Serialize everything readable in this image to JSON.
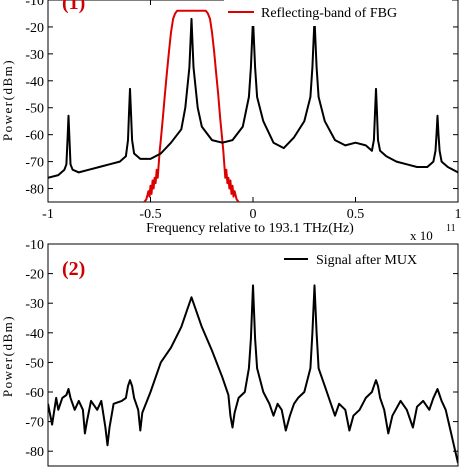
{
  "chart_data": [
    {
      "type": "line",
      "panel_label": "(1)",
      "ylabel": "Power(dBm)",
      "xlabel": "Frequency relative to 193.1 THz(Hz)",
      "x_exponent": "x 10",
      "x_exponent_power": "11",
      "xlim": [
        -1,
        1
      ],
      "ylim": [
        -85,
        -10
      ],
      "x_ticks": [
        "-1",
        "-0.5",
        "0",
        "0.5",
        "1"
      ],
      "y_ticks": [
        "-10",
        "-20",
        "-30",
        "-40",
        "-50",
        "-60",
        "-70",
        "-80"
      ],
      "legend_position": "top-right",
      "series": [
        {
          "name": "Reflecting-band of FBG",
          "color": "#dd0000",
          "points": [
            [
              -0.53,
              -85
            ],
            [
              -0.52,
              -84
            ],
            [
              -0.51,
              -81
            ],
            [
              -0.505,
              -83
            ],
            [
              -0.5,
              -79
            ],
            [
              -0.495,
              -82
            ],
            [
              -0.49,
              -77
            ],
            [
              -0.485,
              -80
            ],
            [
              -0.48,
              -76
            ],
            [
              -0.475,
              -78
            ],
            [
              -0.47,
              -73
            ],
            [
              -0.465,
              -76
            ],
            [
              -0.46,
              -71
            ],
            [
              -0.455,
              -66
            ],
            [
              -0.45,
              -62
            ],
            [
              -0.44,
              -54
            ],
            [
              -0.43,
              -45
            ],
            [
              -0.42,
              -37
            ],
            [
              -0.41,
              -29
            ],
            [
              -0.4,
              -22
            ],
            [
              -0.39,
              -17
            ],
            [
              -0.38,
              -15
            ],
            [
              -0.37,
              -14
            ],
            [
              -0.35,
              -14
            ],
            [
              -0.3,
              -14
            ],
            [
              -0.25,
              -14
            ],
            [
              -0.23,
              -14
            ],
            [
              -0.22,
              -15
            ],
            [
              -0.21,
              -17
            ],
            [
              -0.2,
              -22
            ],
            [
              -0.19,
              -29
            ],
            [
              -0.18,
              -37
            ],
            [
              -0.17,
              -45
            ],
            [
              -0.16,
              -54
            ],
            [
              -0.15,
              -62
            ],
            [
              -0.145,
              -66
            ],
            [
              -0.14,
              -71
            ],
            [
              -0.135,
              -76
            ],
            [
              -0.13,
              -73
            ],
            [
              -0.125,
              -78
            ],
            [
              -0.12,
              -76
            ],
            [
              -0.115,
              -80
            ],
            [
              -0.11,
              -77
            ],
            [
              -0.105,
              -82
            ],
            [
              -0.1,
              -79
            ],
            [
              -0.095,
              -83
            ],
            [
              -0.09,
              -81
            ],
            [
              -0.08,
              -84
            ],
            [
              -0.07,
              -85
            ]
          ]
        },
        {
          "name": "",
          "color": "#000000",
          "baseline": -76,
          "peaks": [
            {
              "x": -0.9,
              "y": -53
            },
            {
              "x": -0.6,
              "y": -43
            },
            {
              "x": -0.3,
              "y": -17
            },
            {
              "x": 0.0,
              "y": -17
            },
            {
              "x": 0.3,
              "y": -17
            },
            {
              "x": 0.6,
              "y": -43
            },
            {
              "x": 0.9,
              "y": -53
            }
          ],
          "points": [
            [
              -1,
              -76
            ],
            [
              -0.95,
              -75
            ],
            [
              -0.92,
              -73
            ],
            [
              -0.91,
              -71
            ],
            [
              -0.905,
              -62
            ],
            [
              -0.9,
              -53
            ],
            [
              -0.895,
              -62
            ],
            [
              -0.89,
              -71
            ],
            [
              -0.88,
              -73
            ],
            [
              -0.85,
              -74
            ],
            [
              -0.8,
              -73
            ],
            [
              -0.75,
              -72
            ],
            [
              -0.7,
              -71
            ],
            [
              -0.65,
              -70
            ],
            [
              -0.62,
              -68
            ],
            [
              -0.61,
              -62
            ],
            [
              -0.605,
              -52
            ],
            [
              -0.6,
              -43
            ],
            [
              -0.595,
              -52
            ],
            [
              -0.59,
              -62
            ],
            [
              -0.58,
              -67
            ],
            [
              -0.55,
              -69
            ],
            [
              -0.5,
              -69
            ],
            [
              -0.45,
              -67
            ],
            [
              -0.4,
              -63
            ],
            [
              -0.35,
              -58
            ],
            [
              -0.33,
              -50
            ],
            [
              -0.31,
              -35
            ],
            [
              -0.3,
              -17
            ],
            [
              -0.29,
              -35
            ],
            [
              -0.27,
              -50
            ],
            [
              -0.25,
              -57
            ],
            [
              -0.2,
              -62
            ],
            [
              -0.15,
              -63
            ],
            [
              -0.1,
              -62
            ],
            [
              -0.05,
              -57
            ],
            [
              -0.02,
              -46
            ],
            [
              -0.01,
              -35
            ],
            [
              0,
              -17
            ],
            [
              0.01,
              -35
            ],
            [
              0.02,
              -46
            ],
            [
              0.05,
              -55
            ],
            [
              0.1,
              -63
            ],
            [
              0.15,
              -65
            ],
            [
              0.2,
              -61
            ],
            [
              0.25,
              -55
            ],
            [
              0.28,
              -46
            ],
            [
              0.29,
              -35
            ],
            [
              0.3,
              -17
            ],
            [
              0.31,
              -35
            ],
            [
              0.32,
              -46
            ],
            [
              0.35,
              -55
            ],
            [
              0.4,
              -62
            ],
            [
              0.45,
              -64
            ],
            [
              0.5,
              -63
            ],
            [
              0.55,
              -64
            ],
            [
              0.58,
              -66
            ],
            [
              0.59,
              -62
            ],
            [
              0.595,
              -52
            ],
            [
              0.6,
              -43
            ],
            [
              0.605,
              -52
            ],
            [
              0.61,
              -62
            ],
            [
              0.62,
              -66
            ],
            [
              0.65,
              -68
            ],
            [
              0.7,
              -70
            ],
            [
              0.75,
              -71
            ],
            [
              0.8,
              -72
            ],
            [
              0.85,
              -72
            ],
            [
              0.88,
              -70
            ],
            [
              0.89,
              -66
            ],
            [
              0.895,
              -60
            ],
            [
              0.9,
              -53
            ],
            [
              0.905,
              -60
            ],
            [
              0.91,
              -66
            ],
            [
              0.92,
              -70
            ],
            [
              0.95,
              -72
            ],
            [
              1,
              -74
            ]
          ]
        }
      ]
    },
    {
      "type": "line",
      "panel_label": "(2)",
      "ylabel": "Power(dBm)",
      "xlim": [
        -1,
        1
      ],
      "ylim": [
        -85,
        -10
      ],
      "y_ticks": [
        "-10",
        "-20",
        "-30",
        "-40",
        "-50",
        "-60",
        "-70",
        "-80"
      ],
      "legend_position": "top-right",
      "series": [
        {
          "name": "Signal after MUX",
          "color": "#000000",
          "peaks": [
            {
              "x": -0.9,
              "y": -59
            },
            {
              "x": -0.6,
              "y": -56
            },
            {
              "x": -0.3,
              "y": -28
            },
            {
              "x": 0.0,
              "y": -24
            },
            {
              "x": 0.3,
              "y": -24
            },
            {
              "x": 0.6,
              "y": -56
            },
            {
              "x": 0.9,
              "y": -59
            }
          ],
          "points": [
            [
              -1,
              -64
            ],
            [
              -0.98,
              -71
            ],
            [
              -0.96,
              -62
            ],
            [
              -0.95,
              -66
            ],
            [
              -0.93,
              -62
            ],
            [
              -0.91,
              -61
            ],
            [
              -0.9,
              -59
            ],
            [
              -0.89,
              -62
            ],
            [
              -0.87,
              -66
            ],
            [
              -0.85,
              -63
            ],
            [
              -0.83,
              -66
            ],
            [
              -0.82,
              -74
            ],
            [
              -0.81,
              -70
            ],
            [
              -0.79,
              -63
            ],
            [
              -0.76,
              -66
            ],
            [
              -0.74,
              -63
            ],
            [
              -0.72,
              -72
            ],
            [
              -0.71,
              -78
            ],
            [
              -0.7,
              -72
            ],
            [
              -0.68,
              -64
            ],
            [
              -0.64,
              -63
            ],
            [
              -0.62,
              -62
            ],
            [
              -0.61,
              -58
            ],
            [
              -0.6,
              -56
            ],
            [
              -0.59,
              -58
            ],
            [
              -0.58,
              -62
            ],
            [
              -0.56,
              -66
            ],
            [
              -0.55,
              -73
            ],
            [
              -0.54,
              -67
            ],
            [
              -0.5,
              -60
            ],
            [
              -0.45,
              -50
            ],
            [
              -0.4,
              -45
            ],
            [
              -0.35,
              -38
            ],
            [
              -0.32,
              -32
            ],
            [
              -0.3,
              -28
            ],
            [
              -0.28,
              -32
            ],
            [
              -0.25,
              -38
            ],
            [
              -0.2,
              -46
            ],
            [
              -0.15,
              -55
            ],
            [
              -0.12,
              -61
            ],
            [
              -0.11,
              -68
            ],
            [
              -0.1,
              -72
            ],
            [
              -0.09,
              -67
            ],
            [
              -0.07,
              -62
            ],
            [
              -0.04,
              -60
            ],
            [
              -0.02,
              -52
            ],
            [
              -0.01,
              -42
            ],
            [
              0,
              -24
            ],
            [
              0.01,
              -42
            ],
            [
              0.02,
              -52
            ],
            [
              0.05,
              -60
            ],
            [
              0.08,
              -64
            ],
            [
              0.1,
              -68
            ],
            [
              0.12,
              -64
            ],
            [
              0.14,
              -66
            ],
            [
              0.16,
              -73
            ],
            [
              0.18,
              -68
            ],
            [
              0.2,
              -64
            ],
            [
              0.22,
              -62
            ],
            [
              0.25,
              -60
            ],
            [
              0.28,
              -52
            ],
            [
              0.29,
              -40
            ],
            [
              0.3,
              -24
            ],
            [
              0.31,
              -40
            ],
            [
              0.32,
              -52
            ],
            [
              0.35,
              -58
            ],
            [
              0.38,
              -64
            ],
            [
              0.4,
              -68
            ],
            [
              0.42,
              -64
            ],
            [
              0.45,
              -66
            ],
            [
              0.47,
              -73
            ],
            [
              0.49,
              -68
            ],
            [
              0.52,
              -66
            ],
            [
              0.55,
              -62
            ],
            [
              0.58,
              -60
            ],
            [
              0.59,
              -58
            ],
            [
              0.6,
              -56
            ],
            [
              0.61,
              -58
            ],
            [
              0.62,
              -62
            ],
            [
              0.64,
              -66
            ],
            [
              0.66,
              -74
            ],
            [
              0.68,
              -68
            ],
            [
              0.72,
              -63
            ],
            [
              0.75,
              -66
            ],
            [
              0.78,
              -72
            ],
            [
              0.8,
              -65
            ],
            [
              0.83,
              -63
            ],
            [
              0.86,
              -66
            ],
            [
              0.88,
              -62
            ],
            [
              0.9,
              -59
            ],
            [
              0.92,
              -63
            ],
            [
              0.94,
              -66
            ],
            [
              0.96,
              -72
            ],
            [
              0.98,
              -78
            ],
            [
              1,
              -84
            ]
          ]
        }
      ]
    }
  ]
}
